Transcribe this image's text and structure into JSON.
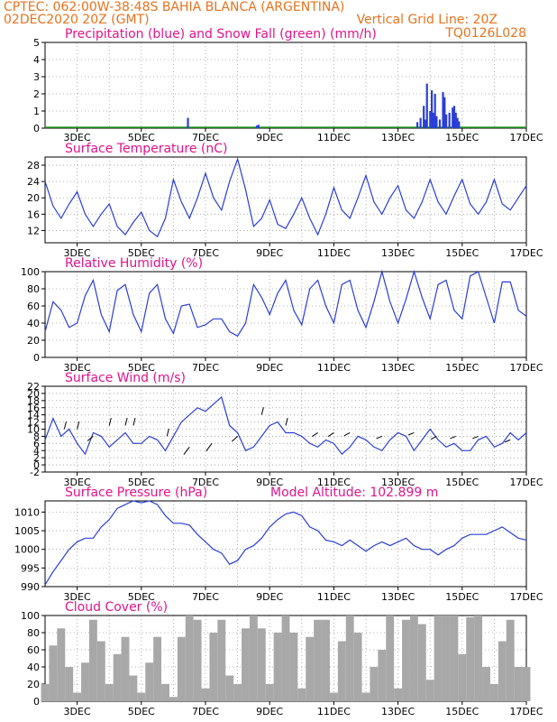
{
  "header": {
    "line1": "CPTEC:   062:00W-38:48S   BAHIA BLANCA (ARGENTINA)",
    "line2_left": "02DEC2020 20Z (GMT)",
    "line2_right": "Vertical Grid Line: 20Z",
    "code": "TQ0126L028"
  },
  "colors": {
    "header": "#e8721c",
    "title": "#e0148c",
    "line": "#2a3fd6",
    "precip": "#2a3fd6",
    "snow": "#2aa82a",
    "cloud": "#a8a8a8",
    "grid": "#9a9a9a"
  },
  "x_ticks": [
    "3DEC",
    "5DEC",
    "7DEC",
    "9DEC",
    "11DEC",
    "13DEC",
    "15DEC",
    "17DEC"
  ],
  "chart_data": [
    {
      "type": "bar",
      "title": "Precipitation (blue) and Snow Fall (green) (mm/h)",
      "ylim": [
        0,
        5
      ],
      "yticks": [
        0,
        1,
        2,
        3,
        4,
        5
      ],
      "series": [
        {
          "name": "Precipitation",
          "x": [
            6.45,
            8.6,
            8.65,
            13.6,
            13.7,
            13.8,
            13.85,
            13.9,
            14.0,
            14.05,
            14.1,
            14.15,
            14.2,
            14.3,
            14.4,
            14.45,
            14.5,
            14.6,
            14.7,
            14.75,
            14.8,
            14.85,
            14.9
          ],
          "values": [
            0.6,
            0.15,
            0.2,
            0.35,
            0.6,
            1.3,
            0.5,
            2.6,
            1.0,
            2.2,
            0.9,
            2.0,
            0.7,
            0.5,
            2.1,
            1.8,
            0.8,
            0.9,
            1.2,
            1.3,
            0.9,
            0.6,
            0.4
          ]
        },
        {
          "name": "Snow Fall",
          "x": [],
          "values": []
        }
      ]
    },
    {
      "type": "line",
      "title": "Surface Temperature (nC)",
      "ylim": [
        9,
        30
      ],
      "yticks": [
        12,
        16,
        20,
        24,
        28
      ],
      "x": [
        2.0,
        2.25,
        2.5,
        2.75,
        3.0,
        3.25,
        3.5,
        3.75,
        4.0,
        4.25,
        4.5,
        4.75,
        5.0,
        5.25,
        5.5,
        5.75,
        6.0,
        6.25,
        6.5,
        6.75,
        7.0,
        7.25,
        7.5,
        7.75,
        8.0,
        8.25,
        8.5,
        8.75,
        9.0,
        9.25,
        9.5,
        9.75,
        10.0,
        10.25,
        10.5,
        10.75,
        11.0,
        11.25,
        11.5,
        11.75,
        12.0,
        12.25,
        12.5,
        12.75,
        13.0,
        13.25,
        13.5,
        13.75,
        14.0,
        14.25,
        14.5,
        14.75,
        15.0,
        15.25,
        15.5,
        15.75,
        16.0,
        16.25,
        16.5,
        16.75,
        17.0
      ],
      "series": [
        {
          "name": "Temperature",
          "values": [
            24,
            18,
            15,
            18.5,
            21.5,
            16,
            13,
            16,
            18.5,
            13,
            11,
            14,
            16.5,
            12,
            10.5,
            15,
            24.5,
            19,
            15,
            20,
            26,
            20,
            17,
            24,
            29.5,
            22,
            13,
            15,
            19.5,
            13.5,
            12.5,
            16,
            20,
            15,
            11,
            16,
            22.5,
            17,
            15,
            20,
            25.5,
            19,
            16,
            20,
            23,
            17,
            15,
            19,
            24.5,
            19,
            16,
            20.5,
            24.5,
            18.5,
            16,
            19,
            24.5,
            18.5,
            17,
            20,
            23
          ]
        }
      ]
    },
    {
      "type": "line",
      "title": "Relative Humidity (%)",
      "ylim": [
        0,
        100
      ],
      "yticks": [
        0,
        20,
        40,
        60,
        80,
        100
      ],
      "x": [
        2.0,
        2.25,
        2.5,
        2.75,
        3.0,
        3.25,
        3.5,
        3.75,
        4.0,
        4.25,
        4.5,
        4.75,
        5.0,
        5.25,
        5.5,
        5.75,
        6.0,
        6.25,
        6.5,
        6.75,
        7.0,
        7.25,
        7.5,
        7.75,
        8.0,
        8.25,
        8.5,
        8.75,
        9.0,
        9.25,
        9.5,
        9.75,
        10.0,
        10.25,
        10.5,
        10.75,
        11.0,
        11.25,
        11.5,
        11.75,
        12.0,
        12.25,
        12.5,
        12.75,
        13.0,
        13.25,
        13.5,
        13.75,
        14.0,
        14.25,
        14.5,
        14.75,
        15.0,
        15.25,
        15.5,
        15.75,
        16.0,
        16.25,
        16.5,
        16.75,
        17.0
      ],
      "series": [
        {
          "name": "Humidity",
          "values": [
            30,
            65,
            55,
            35,
            40,
            72,
            90,
            50,
            30,
            78,
            85,
            50,
            30,
            75,
            85,
            45,
            28,
            60,
            62,
            35,
            38,
            45,
            45,
            30,
            25,
            40,
            85,
            70,
            50,
            75,
            90,
            55,
            38,
            80,
            90,
            60,
            40,
            85,
            90,
            55,
            35,
            65,
            100,
            65,
            40,
            68,
            100,
            70,
            45,
            85,
            90,
            55,
            45,
            95,
            100,
            70,
            40,
            88,
            88,
            55,
            48
          ]
        }
      ]
    },
    {
      "type": "line",
      "title": "Surface Wind (m/s)",
      "ylim": [
        -2,
        22
      ],
      "yticks": [
        -2,
        0,
        2,
        4,
        6,
        8,
        10,
        12,
        14,
        16,
        18,
        20,
        22
      ],
      "x": [
        2.0,
        2.25,
        2.5,
        2.75,
        3.0,
        3.25,
        3.5,
        3.75,
        4.0,
        4.25,
        4.5,
        4.75,
        5.0,
        5.25,
        5.5,
        5.75,
        6.0,
        6.25,
        6.5,
        6.75,
        7.0,
        7.25,
        7.5,
        7.75,
        8.0,
        8.25,
        8.5,
        8.75,
        9.0,
        9.25,
        9.5,
        9.75,
        10.0,
        10.25,
        10.5,
        10.75,
        11.0,
        11.25,
        11.5,
        11.75,
        12.0,
        12.25,
        12.5,
        12.75,
        13.0,
        13.25,
        13.5,
        13.75,
        14.0,
        14.25,
        14.5,
        14.75,
        15.0,
        15.25,
        15.5,
        15.75,
        16.0,
        16.25,
        16.5,
        16.75,
        17.0
      ],
      "series": [
        {
          "name": "Wind speed",
          "values": [
            7,
            13,
            8,
            10,
            6,
            3,
            9,
            8,
            5,
            7,
            9,
            6,
            6,
            8,
            7,
            4,
            8,
            12,
            14,
            16,
            15,
            17,
            19,
            11,
            9,
            4,
            5,
            8,
            11,
            12,
            9,
            9,
            8,
            6,
            5,
            7,
            6,
            3,
            5,
            8,
            7,
            5,
            4,
            7,
            9,
            8,
            4,
            7,
            10,
            7,
            5,
            6,
            4,
            4,
            7,
            8,
            5,
            6,
            9,
            7,
            9
          ]
        }
      ],
      "arrows_note": "wind direction arrows along the line"
    },
    {
      "type": "line",
      "title": "Surface Pressure (hPa)",
      "annotation": "Model Altitude: 102.899  m",
      "ylim": [
        990,
        1013
      ],
      "yticks": [
        990,
        995,
        1000,
        1005,
        1010
      ],
      "x": [
        2.0,
        2.25,
        2.5,
        2.75,
        3.0,
        3.25,
        3.5,
        3.75,
        4.0,
        4.25,
        4.5,
        4.75,
        5.0,
        5.25,
        5.5,
        5.75,
        6.0,
        6.25,
        6.5,
        6.75,
        7.0,
        7.25,
        7.5,
        7.75,
        8.0,
        8.25,
        8.5,
        8.75,
        9.0,
        9.25,
        9.5,
        9.75,
        10.0,
        10.25,
        10.5,
        10.75,
        11.0,
        11.25,
        11.5,
        11.75,
        12.0,
        12.25,
        12.5,
        12.75,
        13.0,
        13.25,
        13.5,
        13.75,
        14.0,
        14.25,
        14.5,
        14.75,
        15.0,
        15.25,
        15.5,
        15.75,
        16.0,
        16.25,
        16.5,
        16.75,
        17.0
      ],
      "series": [
        {
          "name": "Pressure",
          "values": [
            990.5,
            994,
            997,
            1000,
            1002,
            1003,
            1003,
            1006,
            1008,
            1011,
            1012,
            1013,
            1012.5,
            1013,
            1012,
            1009,
            1007,
            1007,
            1006.5,
            1004,
            1002,
            1000,
            999,
            996,
            997,
            1000,
            1001,
            1003,
            1006,
            1008,
            1009.5,
            1010,
            1009,
            1006,
            1005,
            1002.5,
            1002,
            1001,
            1002.5,
            1001,
            999.5,
            1001,
            1002,
            1001,
            1002,
            1003,
            1001,
            1000,
            1000,
            998.5,
            1000,
            1001,
            1003,
            1004,
            1004,
            1004,
            1005,
            1006,
            1004.5,
            1003,
            1002.5
          ]
        }
      ]
    },
    {
      "type": "bar",
      "title": "Cloud Cover (%)",
      "ylim": [
        0,
        100
      ],
      "yticks": [
        0,
        20,
        40,
        60,
        80,
        100
      ],
      "x": [
        2.0,
        2.25,
        2.5,
        2.75,
        3.0,
        3.25,
        3.5,
        3.75,
        4.0,
        4.25,
        4.5,
        4.75,
        5.0,
        5.25,
        5.5,
        5.75,
        6.0,
        6.25,
        6.5,
        6.75,
        7.0,
        7.25,
        7.5,
        7.75,
        8.0,
        8.25,
        8.5,
        8.75,
        9.0,
        9.25,
        9.5,
        9.75,
        10.0,
        10.25,
        10.5,
        10.75,
        11.0,
        11.25,
        11.5,
        11.75,
        12.0,
        12.25,
        12.5,
        12.75,
        13.0,
        13.25,
        13.5,
        13.75,
        14.0,
        14.25,
        14.5,
        14.75,
        15.0,
        15.25,
        15.5,
        15.75,
        16.0,
        16.25,
        16.5,
        16.75,
        17.0
      ],
      "series": [
        {
          "name": "Cloud cover",
          "values": [
            20,
            65,
            85,
            40,
            10,
            45,
            95,
            70,
            20,
            55,
            75,
            30,
            10,
            45,
            75,
            20,
            5,
            75,
            100,
            95,
            15,
            80,
            95,
            30,
            20,
            85,
            100,
            85,
            20,
            80,
            100,
            80,
            15,
            75,
            95,
            95,
            10,
            70,
            100,
            80,
            10,
            40,
            60,
            100,
            15,
            95,
            100,
            90,
            25,
            100,
            100,
            100,
            55,
            98,
            100,
            40,
            20,
            70,
            95,
            40,
            40
          ]
        }
      ]
    }
  ]
}
